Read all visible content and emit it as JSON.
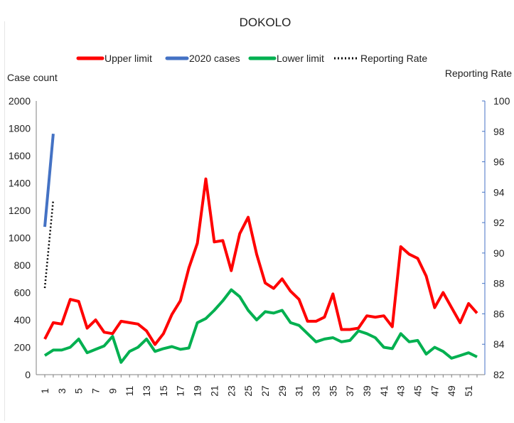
{
  "chart_data": {
    "type": "line",
    "title": "DOKOLO",
    "ylabel": "Case count",
    "y2label": "Reporting Rate",
    "ylim": [
      0,
      2000
    ],
    "y2lim": [
      82,
      100
    ],
    "yticks": [
      "0",
      "200",
      "400",
      "600",
      "800",
      "1000",
      "1200",
      "1400",
      "1600",
      "1800",
      "2000"
    ],
    "y2ticks": [
      "82",
      "84",
      "86",
      "88",
      "90",
      "92",
      "94",
      "96",
      "98",
      "100"
    ],
    "xticks": [
      "1",
      "3",
      "5",
      "7",
      "9",
      "11",
      "13",
      "15",
      "17",
      "19",
      "21",
      "23",
      "25",
      "27",
      "29",
      "31",
      "33",
      "35",
      "37",
      "39",
      "41",
      "43",
      "45",
      "47",
      "49",
      "51"
    ],
    "xlim": [
      1,
      52
    ],
    "legend_position": "top",
    "grid": false,
    "series": [
      {
        "name": "Upper limit",
        "color": "#ff0000",
        "axis": "left",
        "x": [
          1,
          2,
          3,
          4,
          5,
          6,
          7,
          8,
          9,
          10,
          11,
          12,
          13,
          14,
          15,
          16,
          17,
          18,
          19,
          20,
          21,
          22,
          23,
          24,
          25,
          26,
          27,
          28,
          29,
          30,
          31,
          32,
          33,
          34,
          35,
          36,
          37,
          38,
          39,
          40,
          41,
          42,
          43,
          44,
          45,
          46,
          47,
          48,
          49,
          50,
          51,
          52
        ],
        "values": [
          260,
          380,
          370,
          550,
          535,
          340,
          400,
          310,
          300,
          390,
          380,
          370,
          320,
          220,
          300,
          440,
          540,
          780,
          960,
          1430,
          970,
          980,
          760,
          1030,
          1150,
          880,
          670,
          630,
          700,
          610,
          550,
          390,
          390,
          420,
          590,
          330,
          330,
          340,
          430,
          420,
          430,
          350,
          935,
          880,
          850,
          720,
          490,
          600,
          490,
          380,
          520,
          450
        ]
      },
      {
        "name": "2020 cases",
        "color": "#4472c4",
        "axis": "left",
        "x": [
          1,
          2
        ],
        "values": [
          1080,
          1760
        ]
      },
      {
        "name": "Lower limit",
        "color": "#00b050",
        "axis": "left",
        "x": [
          1,
          2,
          3,
          4,
          5,
          6,
          7,
          8,
          9,
          10,
          11,
          12,
          13,
          14,
          15,
          16,
          17,
          18,
          19,
          20,
          21,
          22,
          23,
          24,
          25,
          26,
          27,
          28,
          29,
          30,
          31,
          32,
          33,
          34,
          35,
          36,
          37,
          38,
          39,
          40,
          41,
          42,
          43,
          44,
          45,
          46,
          47,
          48,
          49,
          50,
          51,
          52
        ],
        "values": [
          140,
          180,
          180,
          200,
          260,
          160,
          185,
          210,
          280,
          90,
          170,
          200,
          260,
          170,
          190,
          205,
          185,
          195,
          380,
          410,
          470,
          540,
          620,
          570,
          470,
          400,
          460,
          450,
          470,
          380,
          360,
          300,
          240,
          260,
          270,
          240,
          250,
          320,
          300,
          270,
          200,
          190,
          300,
          240,
          250,
          150,
          200,
          170,
          120,
          140,
          160,
          130
        ]
      },
      {
        "name": "Reporting Rate",
        "color": "#000000",
        "style": "dotted",
        "axis": "right",
        "x": [
          1,
          2
        ],
        "values": [
          87.7,
          93.5
        ]
      }
    ]
  }
}
